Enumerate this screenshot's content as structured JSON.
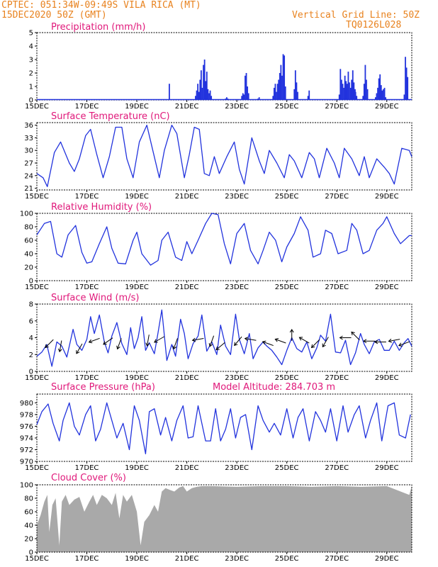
{
  "header": {
    "line1": "CPTEC:  051:34W-09:49S  VILA RICA (MT)",
    "line2": "15DEC2020 50Z (GMT)",
    "grid_note": "Vertical Grid Line: 50Z",
    "code": "TQ0126L028",
    "model_altitude": "Model Altitude: 284.703 m"
  },
  "colors": {
    "header": "#e8821e",
    "title": "#e0187a",
    "line": "#2233dd",
    "cloud": "#a9a9a9",
    "arrow": "#000000"
  },
  "chart_data": [
    {
      "id": "precip",
      "type": "bar",
      "title": "Precipitation (mm/h)",
      "ylim": [
        0,
        5
      ],
      "yticks": [
        0,
        1,
        2,
        3,
        4,
        5
      ],
      "bursts": [
        {
          "t": 5.3,
          "vals": [
            1.2
          ]
        },
        {
          "t": 6.35,
          "vals": [
            0.3,
            0.7,
            1.2,
            0.6,
            1.5,
            2.2,
            0.9,
            2.6,
            3.0,
            1.4,
            2.1,
            0.8,
            0.5,
            0.7,
            0.3
          ]
        },
        {
          "t": 7.55,
          "vals": [
            0.1,
            0.2,
            0.1
          ]
        },
        {
          "t": 8.2,
          "vals": [
            0.3,
            0.5,
            0.4,
            1.8,
            2.0,
            1.0,
            0.5
          ]
        },
        {
          "t": 8.85,
          "vals": [
            0.1,
            0.2
          ]
        },
        {
          "t": 9.45,
          "vals": [
            0.3,
            0.9,
            1.2,
            0.6,
            1.2,
            1.5,
            2.0,
            2.6,
            1.8,
            3.4,
            3.3,
            1.0
          ]
        },
        {
          "t": 10.3,
          "vals": [
            0.8,
            2.2,
            1.3,
            0.6
          ]
        },
        {
          "t": 10.85,
          "vals": [
            0.3,
            0.7
          ]
        },
        {
          "t": 12.1,
          "vals": [
            0.4,
            2.3,
            1.5,
            1.2,
            0.9,
            1.8,
            1.4,
            1.2,
            2.1,
            1.3,
            0.9,
            1.5,
            2.2,
            1.3,
            0.8
          ]
        },
        {
          "t": 12.75,
          "vals": [
            0.6,
            0.3
          ]
        },
        {
          "t": 13.05,
          "vals": [
            0.3,
            1.2,
            2.6,
            1.5,
            0.8
          ]
        },
        {
          "t": 13.55,
          "vals": [
            0.2,
            0.5,
            0.9,
            1.6,
            1.9,
            1.1,
            0.7,
            0.8,
            0.9,
            0.2
          ]
        },
        {
          "t": 14.7,
          "vals": [
            0.4,
            3.2,
            2.4,
            1.7
          ]
        }
      ],
      "xlabels": [
        "15DEC",
        "17DEC",
        "19DEC",
        "21DEC",
        "23DEC",
        "25DEC",
        "27DEC",
        "29DEC"
      ]
    },
    {
      "id": "temp",
      "type": "line",
      "title": "Surface Temperature (nC)",
      "ylim": [
        20.6,
        36.6
      ],
      "yticks": [
        21,
        24,
        27,
        30,
        33,
        36
      ],
      "x": [
        0.0,
        0.25,
        0.42,
        0.7,
        0.95,
        1.3,
        1.5,
        1.7,
        1.95,
        2.15,
        2.4,
        2.65,
        2.9,
        3.15,
        3.4,
        3.6,
        3.85,
        4.1,
        4.4,
        4.6,
        4.9,
        5.1,
        5.4,
        5.6,
        5.9,
        6.1,
        6.3,
        6.5,
        6.7,
        6.9,
        7.1,
        7.3,
        7.6,
        7.9,
        8.1,
        8.3,
        8.6,
        8.9,
        9.1,
        9.3,
        9.6,
        9.9,
        10.1,
        10.3,
        10.6,
        10.9,
        11.1,
        11.3,
        11.6,
        11.9,
        12.1,
        12.3,
        12.6,
        12.9,
        13.1,
        13.3,
        13.6,
        13.9,
        14.1,
        14.3,
        14.6,
        14.9,
        15.0
      ],
      "y": [
        24.5,
        23.5,
        21.4,
        29.5,
        32.0,
        27.0,
        25.0,
        28.0,
        33.5,
        35.0,
        29.0,
        23.5,
        28.5,
        35.5,
        35.5,
        28.0,
        23.5,
        32.0,
        36.0,
        31.0,
        23.5,
        30.0,
        36.0,
        34.0,
        23.5,
        29.0,
        35.5,
        35.0,
        24.5,
        24.0,
        28.5,
        24.5,
        28.5,
        32.0,
        25.5,
        22.0,
        33.0,
        27.5,
        24.5,
        30.0,
        27.0,
        23.5,
        29.0,
        27.5,
        23.5,
        29.5,
        28.0,
        23.5,
        30.5,
        27.0,
        23.5,
        30.5,
        28.0,
        24.0,
        28.5,
        23.5,
        28.0,
        26.0,
        24.5,
        22.0,
        30.5,
        30.0,
        28.5
      ],
      "xlabels": [
        "15DEC",
        "17DEC",
        "19DEC",
        "21DEC",
        "23DEC",
        "25DEC",
        "27DEC",
        "29DEC"
      ]
    },
    {
      "id": "rh",
      "type": "line",
      "title": "Relative Humidity (%)",
      "ylim": [
        0,
        100
      ],
      "yticks": [
        0,
        20,
        40,
        60,
        80,
        100
      ],
      "x": [
        0.0,
        0.3,
        0.55,
        0.8,
        1.0,
        1.25,
        1.55,
        1.8,
        2.0,
        2.2,
        2.5,
        2.8,
        3.0,
        3.25,
        3.55,
        3.85,
        4.0,
        4.2,
        4.55,
        4.85,
        5.0,
        5.25,
        5.55,
        5.8,
        6.0,
        6.2,
        6.45,
        6.75,
        7.0,
        7.25,
        7.5,
        7.75,
        8.0,
        8.3,
        8.55,
        8.85,
        9.05,
        9.3,
        9.55,
        9.8,
        10.0,
        10.3,
        10.55,
        10.85,
        11.05,
        11.35,
        11.55,
        11.8,
        12.05,
        12.4,
        12.6,
        12.8,
        13.05,
        13.3,
        13.6,
        13.85,
        14.0,
        14.3,
        14.55,
        14.9,
        15.0
      ],
      "y": [
        68,
        85,
        88,
        40,
        35,
        68,
        82,
        42,
        26,
        28,
        55,
        80,
        48,
        26,
        25,
        60,
        72,
        40,
        23,
        30,
        60,
        72,
        35,
        30,
        58,
        40,
        60,
        85,
        100,
        98,
        55,
        25,
        70,
        85,
        45,
        25,
        45,
        72,
        60,
        28,
        50,
        70,
        95,
        75,
        35,
        40,
        75,
        70,
        40,
        45,
        85,
        75,
        40,
        45,
        75,
        85,
        95,
        70,
        55,
        67,
        67
      ],
      "xlabels": [
        "15DEC",
        "17DEC",
        "19DEC",
        "21DEC",
        "23DEC",
        "25DEC",
        "27DEC",
        "29DEC"
      ]
    },
    {
      "id": "wind",
      "type": "line",
      "title": "Surface Wind (m/s)",
      "ylim": [
        0,
        8
      ],
      "yticks": [
        0,
        2,
        4,
        6,
        8
      ],
      "x": [
        0.0,
        0.2,
        0.4,
        0.6,
        0.8,
        1.0,
        1.2,
        1.45,
        1.6,
        1.8,
        2.0,
        2.15,
        2.3,
        2.5,
        2.7,
        2.85,
        3.0,
        3.2,
        3.4,
        3.6,
        3.75,
        3.9,
        4.05,
        4.2,
        4.35,
        4.5,
        4.7,
        4.85,
        5.0,
        5.2,
        5.4,
        5.55,
        5.75,
        5.9,
        6.05,
        6.25,
        6.45,
        6.6,
        6.8,
        7.0,
        7.2,
        7.35,
        7.55,
        7.75,
        7.95,
        8.1,
        8.3,
        8.5,
        8.65,
        8.85,
        9.05,
        9.2,
        9.4,
        9.6,
        9.8,
        10.0,
        10.2,
        10.4,
        10.6,
        10.8,
        11.0,
        11.2,
        11.35,
        11.55,
        11.75,
        11.95,
        12.15,
        12.35,
        12.55,
        12.75,
        12.95,
        13.1,
        13.3,
        13.5,
        13.7,
        13.9,
        14.1,
        14.3,
        14.5,
        14.7,
        14.85,
        15.0
      ],
      "y": [
        1.8,
        2.3,
        3.2,
        0.6,
        3.5,
        3.0,
        1.7,
        5.0,
        3.2,
        2.5,
        3.8,
        6.5,
        4.5,
        6.7,
        3.5,
        2.2,
        4.2,
        5.8,
        3.3,
        2.0,
        5.2,
        2.7,
        4.0,
        6.5,
        2.5,
        3.4,
        2.1,
        4.6,
        7.3,
        1.3,
        3.2,
        1.8,
        6.2,
        4.5,
        1.5,
        3.3,
        4.2,
        6.7,
        2.4,
        3.5,
        2.0,
        5.5,
        3.0,
        2.0,
        6.8,
        3.8,
        2.1,
        4.5,
        1.5,
        2.8,
        3.5,
        3.0,
        2.5,
        1.7,
        0.8,
        2.5,
        4.0,
        2.7,
        2.3,
        3.5,
        1.5,
        2.8,
        4.3,
        3.6,
        6.8,
        2.3,
        2.2,
        3.7,
        0.8,
        2.2,
        4.5,
        3.2,
        2.1,
        3.5,
        3.8,
        2.5,
        2.5,
        3.6,
        2.5,
        3.4,
        3.9,
        3.0
      ],
      "arrows": [
        {
          "t": 0.5,
          "v": 3.3,
          "dir": 225
        },
        {
          "t": 0.95,
          "v": 3.0,
          "dir": 190
        },
        {
          "t": 1.7,
          "v": 2.7,
          "dir": 210
        },
        {
          "t": 2.3,
          "v": 3.7,
          "dir": 250
        },
        {
          "t": 2.85,
          "v": 3.6,
          "dir": 235
        },
        {
          "t": 3.3,
          "v": 3.3,
          "dir": 200
        },
        {
          "t": 4.45,
          "v": 3.7,
          "dir": 190
        },
        {
          "t": 4.9,
          "v": 3.8,
          "dir": 240
        },
        {
          "t": 5.55,
          "v": 3.3,
          "dir": 200
        },
        {
          "t": 6.45,
          "v": 3.8,
          "dir": 260
        },
        {
          "t": 7.0,
          "v": 3.6,
          "dir": 200
        },
        {
          "t": 7.35,
          "v": 3.0,
          "dir": 230
        },
        {
          "t": 8.05,
          "v": 3.6,
          "dir": 220
        },
        {
          "t": 8.55,
          "v": 3.8,
          "dir": 280
        },
        {
          "t": 9.25,
          "v": 3.3,
          "dir": 290
        },
        {
          "t": 9.75,
          "v": 3.6,
          "dir": 290
        },
        {
          "t": 10.2,
          "v": 4.3,
          "dir": 0
        },
        {
          "t": 10.7,
          "v": 3.7,
          "dir": 300
        },
        {
          "t": 11.15,
          "v": 3.3,
          "dir": 225
        },
        {
          "t": 11.55,
          "v": 3.5,
          "dir": 210
        },
        {
          "t": 12.35,
          "v": 4.0,
          "dir": 270
        },
        {
          "t": 12.75,
          "v": 4.2,
          "dir": 315
        },
        {
          "t": 13.3,
          "v": 3.6,
          "dir": 270
        },
        {
          "t": 13.75,
          "v": 3.5,
          "dir": 270
        },
        {
          "t": 14.3,
          "v": 3.7,
          "dir": 260
        },
        {
          "t": 14.7,
          "v": 3.3,
          "dir": 250
        }
      ],
      "xlabels": [
        "15DEC",
        "17DEC",
        "19DEC",
        "21DEC",
        "23DEC",
        "25DEC",
        "27DEC",
        "29DEC"
      ]
    },
    {
      "id": "pres",
      "type": "line",
      "title": "Surface Pressure (hPa)",
      "ylim": [
        970,
        981.5
      ],
      "yticks": [
        970,
        972,
        974,
        976,
        978,
        980
      ],
      "x": [
        0.0,
        0.2,
        0.45,
        0.65,
        0.9,
        1.05,
        1.3,
        1.5,
        1.7,
        1.95,
        2.15,
        2.35,
        2.55,
        2.8,
        3.0,
        3.2,
        3.45,
        3.7,
        3.9,
        4.1,
        4.35,
        4.5,
        4.7,
        4.95,
        5.15,
        5.4,
        5.6,
        5.85,
        6.05,
        6.25,
        6.45,
        6.75,
        6.95,
        7.15,
        7.35,
        7.55,
        7.75,
        7.95,
        8.15,
        8.35,
        8.6,
        8.85,
        9.05,
        9.3,
        9.5,
        9.75,
        10.0,
        10.25,
        10.45,
        10.65,
        10.9,
        11.15,
        11.35,
        11.55,
        11.75,
        12.0,
        12.25,
        12.45,
        12.7,
        12.9,
        13.15,
        13.35,
        13.6,
        13.8,
        14.05,
        14.3,
        14.5,
        14.75,
        14.95
      ],
      "y": [
        976.3,
        978.5,
        979.8,
        976.5,
        973.5,
        977.0,
        980.0,
        976.0,
        974.5,
        978.0,
        979.5,
        973.5,
        975.5,
        980.0,
        977.0,
        974.0,
        976.5,
        972.0,
        979.5,
        977.0,
        971.3,
        978.5,
        979.0,
        974.5,
        977.5,
        973.5,
        977.0,
        979.5,
        974.0,
        974.2,
        979.5,
        973.5,
        973.5,
        979.0,
        973.5,
        975.5,
        979.0,
        974.0,
        977.5,
        978.0,
        972.0,
        979.5,
        977.0,
        975.0,
        976.5,
        974.5,
        979.0,
        974.0,
        977.5,
        979.0,
        973.5,
        978.5,
        977.0,
        975.0,
        979.0,
        973.5,
        979.5,
        975.0,
        978.0,
        979.5,
        974.0,
        977.0,
        980.0,
        973.5,
        979.5,
        980.0,
        974.5,
        974.0,
        978.0
      ],
      "xlabels": [
        "15DEC",
        "17DEC",
        "19DEC",
        "21DEC",
        "23DEC",
        "25DEC",
        "27DEC",
        "29DEC"
      ]
    },
    {
      "id": "cloud",
      "type": "area",
      "title": "Cloud Cover (%)",
      "ylim": [
        0,
        100
      ],
      "yticks": [
        0,
        20,
        40,
        60,
        80,
        100
      ],
      "x": [
        0.0,
        0.15,
        0.3,
        0.42,
        0.5,
        0.62,
        0.75,
        0.9,
        1.0,
        1.15,
        1.3,
        1.5,
        1.7,
        1.9,
        2.1,
        2.25,
        2.4,
        2.6,
        2.8,
        3.0,
        3.15,
        3.3,
        3.45,
        3.6,
        3.8,
        4.0,
        4.15,
        4.3,
        4.5,
        4.7,
        4.85,
        5.0,
        5.15,
        5.35,
        5.5,
        5.7,
        5.85,
        6.0,
        6.2,
        6.4,
        6.6,
        7.0,
        8.0,
        9.0,
        10.0,
        11.0,
        12.0,
        13.0,
        14.0,
        14.9,
        15.0
      ],
      "y": [
        40,
        55,
        75,
        85,
        30,
        70,
        80,
        10,
        75,
        85,
        70,
        78,
        82,
        60,
        75,
        85,
        70,
        85,
        80,
        70,
        88,
        50,
        85,
        75,
        85,
        60,
        10,
        45,
        55,
        70,
        60,
        90,
        95,
        92,
        90,
        96,
        98,
        90,
        95,
        97,
        98,
        98,
        97,
        98,
        98,
        97,
        98,
        97,
        98,
        85,
        98
      ],
      "xlabels": [
        "15DEC",
        "17DEC",
        "19DEC",
        "21DEC",
        "23DEC",
        "25DEC",
        "27DEC",
        "29DEC"
      ]
    }
  ]
}
